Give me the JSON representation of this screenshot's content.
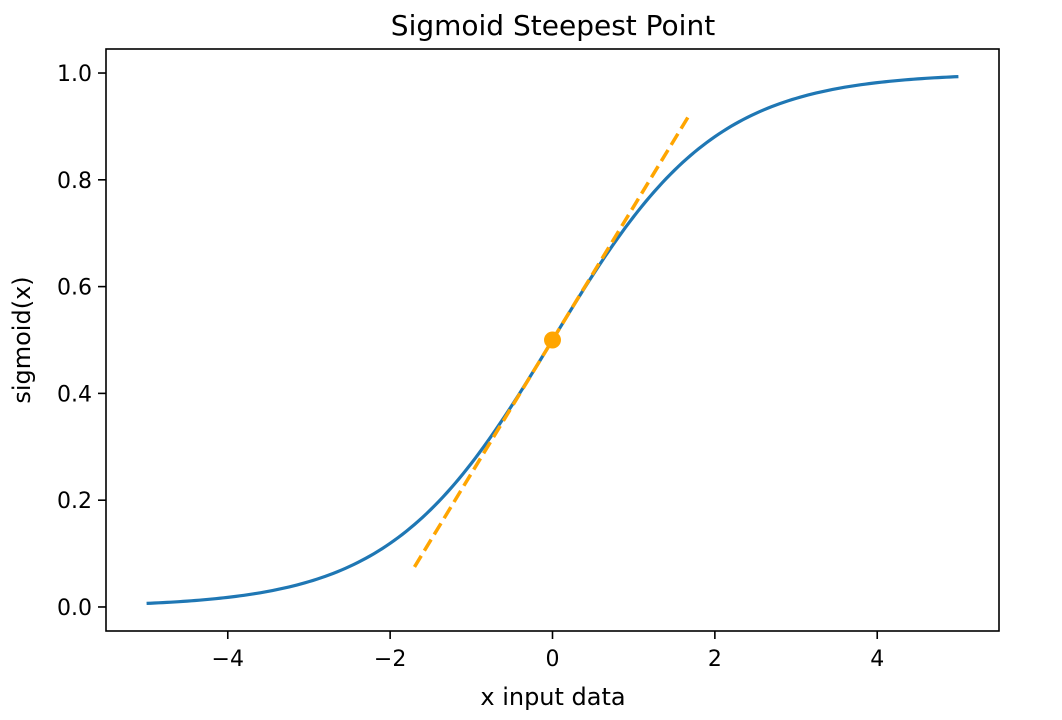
{
  "chart_data": {
    "type": "line",
    "title": "Sigmoid Steepest Point",
    "xlabel": "x input data",
    "ylabel": "sigmoid(x)",
    "xlim": [
      -5.5,
      5.5
    ],
    "ylim": [
      -0.045,
      1.045
    ],
    "grid": false,
    "x_ticks": [
      -4,
      -2,
      0,
      2,
      4
    ],
    "x_tick_labels": [
      "−4",
      "−2",
      "0",
      "2",
      "4"
    ],
    "y_ticks": [
      0.0,
      0.2,
      0.4,
      0.6,
      0.8,
      1.0
    ],
    "y_tick_labels": [
      "0.0",
      "0.2",
      "0.4",
      "0.6",
      "0.8",
      "1.0"
    ],
    "series": [
      {
        "style": "solid",
        "color": "#1f77b4",
        "function": "sigmoid",
        "x": [
          -5,
          -4,
          -3,
          -2,
          -1.5,
          -1,
          -0.5,
          0,
          0.5,
          1,
          1.5,
          2,
          3,
          4,
          5
        ],
        "y": [
          0.0067,
          0.018,
          0.0474,
          0.1192,
          0.1824,
          0.2689,
          0.3775,
          0.5,
          0.6225,
          0.7311,
          0.8176,
          0.8808,
          0.9526,
          0.982,
          0.9933
        ]
      },
      {
        "style": "dashed",
        "color": "#ffa500",
        "x": [
          -1.7,
          1.7
        ],
        "y": [
          0.075,
          0.925
        ]
      }
    ],
    "points": [
      {
        "x": 0,
        "y": 0.5,
        "color": "#ffa500"
      }
    ]
  }
}
